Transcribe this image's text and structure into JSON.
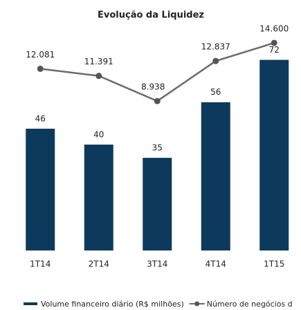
{
  "chart_data": {
    "type": "bar",
    "title": "Evolução da Liquidez",
    "categories": [
      "1T14",
      "2T14",
      "3T14",
      "4T14",
      "1T15"
    ],
    "ylim": [
      0,
      92
    ],
    "y2lim": [
      -5600,
      18100
    ],
    "series": [
      {
        "name": "Volume financeiro diário (R$ milhões)",
        "type": "bar",
        "color": "#0d3a5c",
        "values": [
          46,
          40,
          35,
          56,
          72
        ]
      },
      {
        "name": "Número de negócios d",
        "type": "line",
        "axis": "y2",
        "color": "#6b6b6b",
        "values": [
          12081,
          11391,
          8938,
          12837,
          14600
        ],
        "value_labels": [
          "12.081",
          "11.391",
          "8.938",
          "12.837",
          "14.600"
        ]
      }
    ]
  }
}
